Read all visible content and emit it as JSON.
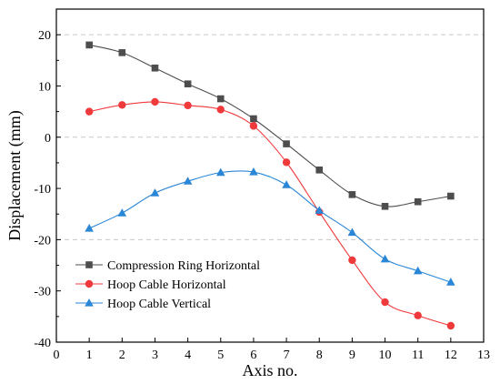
{
  "chart_data": {
    "type": "line",
    "xlabel": "Axis no.",
    "ylabel": "Displacement (mm)",
    "xlim": [
      0,
      13
    ],
    "ylim": [
      -40,
      25
    ],
    "xticks": [
      0,
      1,
      2,
      3,
      4,
      5,
      6,
      7,
      8,
      9,
      10,
      11,
      12,
      13
    ],
    "yticks": [
      -40,
      -30,
      -20,
      -10,
      0,
      10,
      20
    ],
    "grid_y": [
      20,
      0,
      -20
    ],
    "grid": "dashed horizontal at 20, 0, -20",
    "legend_position": "lower-left",
    "x": [
      1,
      2,
      3,
      4,
      5,
      6,
      7,
      8,
      9,
      10,
      11,
      12
    ],
    "series": [
      {
        "name": "Compression Ring Horizontal",
        "color": "#4d4d4d",
        "marker": "square",
        "values": [
          18.0,
          16.5,
          13.5,
          10.4,
          7.5,
          3.6,
          -1.3,
          -6.4,
          -11.2,
          -13.5,
          -12.6,
          -11.5
        ]
      },
      {
        "name": "Hoop Cable Horizontal",
        "color": "#f0393b",
        "marker": "circle",
        "values": [
          5.0,
          6.3,
          6.9,
          6.2,
          5.4,
          2.2,
          -4.9,
          -14.6,
          -24.0,
          -32.2,
          -34.8,
          -36.8
        ]
      },
      {
        "name": "Hoop Cable Vertical",
        "color": "#2a86d6",
        "marker": "triangle",
        "values": [
          -17.8,
          -14.8,
          -10.9,
          -8.6,
          -6.9,
          -6.8,
          -9.3,
          -14.3,
          -18.6,
          -23.8,
          -26.1,
          -28.3
        ]
      }
    ]
  }
}
